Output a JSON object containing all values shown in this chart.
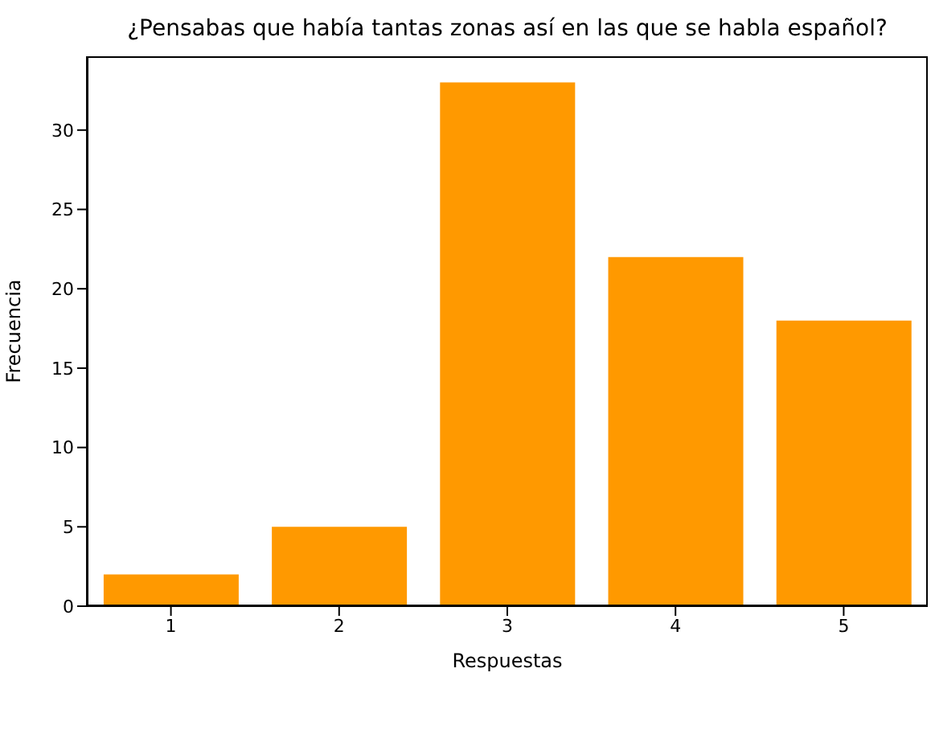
{
  "chart_data": {
    "type": "bar",
    "title": "¿Pensabas que había tantas zonas así en las que se habla español?",
    "xlabel": "Respuestas",
    "ylabel": "Frecuencia",
    "categories": [
      "1",
      "2",
      "3",
      "4",
      "5"
    ],
    "values": [
      2,
      5,
      33,
      22,
      18
    ],
    "color": "#ff9900",
    "ylim": [
      0,
      34.65
    ],
    "yticks": [
      0,
      5,
      10,
      15,
      20,
      25,
      30
    ],
    "grid": false,
    "legend": false
  }
}
